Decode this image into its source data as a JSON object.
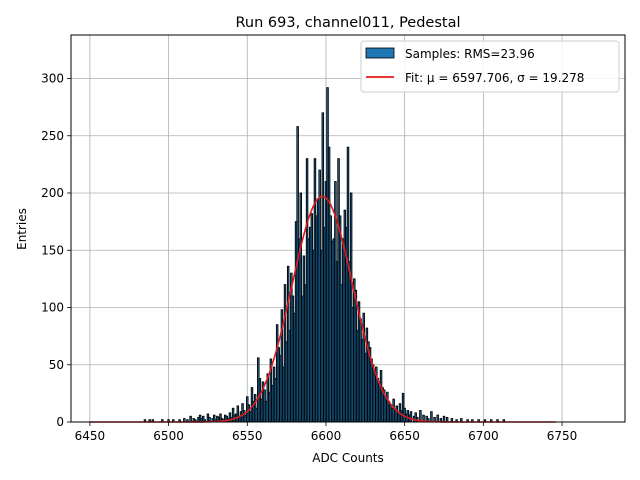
{
  "chart_data": {
    "type": "histogram",
    "title": "Run 693, channel011, Pedestal",
    "xlabel": "ADC Counts",
    "ylabel": "Entries",
    "xlim": [
      6438,
      6790
    ],
    "ylim": [
      0,
      338
    ],
    "xticks": [
      6450,
      6500,
      6550,
      6600,
      6650,
      6700,
      6750
    ],
    "yticks": [
      0,
      50,
      100,
      150,
      200,
      250,
      300
    ],
    "grid": true,
    "legend_position": "top-right",
    "legend": [
      {
        "label": "Samples: RMS=23.96",
        "kind": "bar",
        "color": "#1f77b4"
      },
      {
        "label": "Fit: μ = 6597.706, σ = 19.278",
        "kind": "line",
        "color": "#e31a1c"
      }
    ],
    "fit": {
      "type": "gaussian",
      "mean": 6597.706,
      "sigma": 19.278,
      "amplitude": 197,
      "x_range": [
        6450,
        6746
      ]
    },
    "histogram": {
      "color": "#1f77b4",
      "edgecolor": "#000000",
      "bin_width": 1,
      "x": [
        6485,
        6488,
        6490,
        6496,
        6500,
        6503,
        6507,
        6510,
        6512,
        6514,
        6516,
        6517,
        6519,
        6520,
        6521,
        6522,
        6523,
        6525,
        6526,
        6528,
        6529,
        6530,
        6531,
        6532,
        6533,
        6534,
        6535,
        6536,
        6537,
        6538,
        6539,
        6540,
        6541,
        6542,
        6543,
        6544,
        6545,
        6546,
        6547,
        6548,
        6549,
        6550,
        6551,
        6552,
        6553,
        6554,
        6555,
        6556,
        6557,
        6558,
        6559,
        6560,
        6561,
        6562,
        6563,
        6564,
        6565,
        6566,
        6567,
        6568,
        6569,
        6570,
        6571,
        6572,
        6573,
        6574,
        6575,
        6576,
        6577,
        6578,
        6579,
        6580,
        6581,
        6582,
        6583,
        6584,
        6585,
        6586,
        6587,
        6588,
        6589,
        6590,
        6591,
        6592,
        6593,
        6594,
        6595,
        6596,
        6597,
        6598,
        6599,
        6600,
        6601,
        6602,
        6603,
        6604,
        6605,
        6606,
        6607,
        6608,
        6609,
        6610,
        6611,
        6612,
        6613,
        6614,
        6615,
        6616,
        6617,
        6618,
        6619,
        6620,
        6621,
        6622,
        6623,
        6624,
        6625,
        6626,
        6627,
        6628,
        6629,
        6630,
        6631,
        6632,
        6633,
        6634,
        6635,
        6636,
        6637,
        6638,
        6639,
        6640,
        6641,
        6642,
        6643,
        6644,
        6645,
        6646,
        6647,
        6648,
        6649,
        6650,
        6651,
        6652,
        6653,
        6654,
        6656,
        6657,
        6658,
        6660,
        6662,
        6664,
        6665,
        6667,
        6669,
        6671,
        6673,
        6675,
        6677,
        6680,
        6683,
        6686,
        6690,
        6693,
        6697,
        6701,
        6705,
        6709,
        6713
      ],
      "counts": [
        2,
        2,
        2,
        2,
        2,
        2,
        2,
        3,
        2,
        5,
        3,
        2,
        4,
        6,
        3,
        5,
        2,
        7,
        4,
        3,
        6,
        2,
        5,
        4,
        7,
        3,
        2,
        6,
        5,
        3,
        8,
        4,
        12,
        6,
        7,
        14,
        5,
        9,
        16,
        10,
        6,
        22,
        15,
        9,
        30,
        18,
        24,
        12,
        56,
        38,
        20,
        35,
        28,
        18,
        42,
        26,
        55,
        32,
        48,
        38,
        85,
        65,
        58,
        98,
        48,
        120,
        70,
        136,
        80,
        130,
        110,
        95,
        175,
        258,
        160,
        200,
        110,
        145,
        120,
        230,
        160,
        170,
        182,
        150,
        230,
        180,
        195,
        220,
        150,
        270,
        170,
        210,
        292,
        240,
        180,
        158,
        160,
        210,
        140,
        230,
        180,
        120,
        160,
        185,
        170,
        240,
        140,
        200,
        100,
        125,
        115,
        80,
        105,
        90,
        72,
        95,
        60,
        82,
        70,
        65,
        55,
        50,
        42,
        48,
        38,
        35,
        45,
        30,
        28,
        22,
        26,
        18,
        15,
        12,
        20,
        10,
        14,
        8,
        16,
        10,
        25,
        12,
        7,
        10,
        6,
        9,
        5,
        8,
        4,
        10,
        6,
        5,
        3,
        9,
        4,
        6,
        3,
        5,
        4,
        3,
        2,
        3,
        2,
        2,
        2,
        2,
        2,
        2,
        2
      ]
    }
  }
}
